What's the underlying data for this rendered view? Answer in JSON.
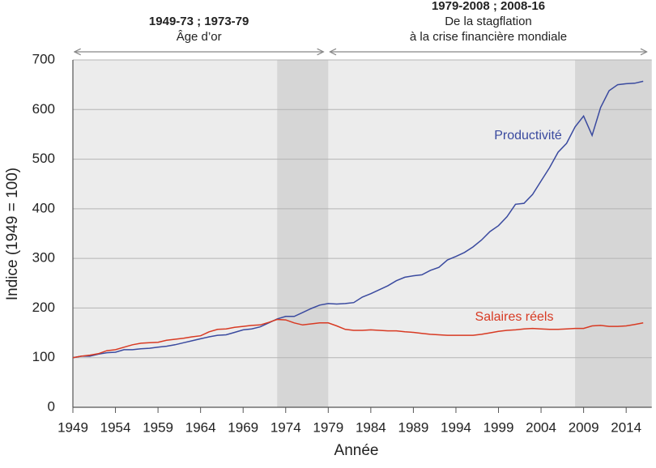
{
  "chart_data": {
    "type": "line",
    "x_label": "Année",
    "y_label": "Indice (1949 = 100)",
    "xlim": [
      1949,
      2017
    ],
    "ylim": [
      0,
      700
    ],
    "xticks": [
      1949,
      1954,
      1959,
      1964,
      1969,
      1974,
      1979,
      1984,
      1989,
      1994,
      1999,
      2004,
      2009,
      2014
    ],
    "yticks": [
      0,
      100,
      200,
      300,
      400,
      500,
      600,
      700
    ],
    "grid": true,
    "shaded_periods": [
      [
        1973,
        1979
      ],
      [
        2008,
        2017
      ]
    ],
    "annotations": [
      {
        "title": "1949-73 ; 1973-79",
        "lines": [
          "Âge d’or"
        ],
        "span": [
          1949,
          1979
        ]
      },
      {
        "title": "1979-2008 ; 2008-16",
        "lines": [
          "De la stagflation",
          "à la crise financière mondiale"
        ],
        "span": [
          1979,
          2017
        ]
      }
    ],
    "x": [
      1949,
      1950,
      1951,
      1952,
      1953,
      1954,
      1955,
      1956,
      1957,
      1958,
      1959,
      1960,
      1961,
      1962,
      1963,
      1964,
      1965,
      1966,
      1967,
      1968,
      1969,
      1970,
      1971,
      1972,
      1973,
      1974,
      1975,
      1976,
      1977,
      1978,
      1979,
      1980,
      1981,
      1982,
      1983,
      1984,
      1985,
      1986,
      1987,
      1988,
      1989,
      1990,
      1991,
      1992,
      1993,
      1994,
      1995,
      1996,
      1997,
      1998,
      1999,
      2000,
      2001,
      2002,
      2003,
      2004,
      2005,
      2006,
      2007,
      2008,
      2009,
      2010,
      2011,
      2012,
      2013,
      2014,
      2015,
      2016
    ],
    "series": [
      {
        "name": "Productivité",
        "color": "#3a4a9f",
        "values": [
          100,
          103,
          103,
          107,
          110,
          111,
          116,
          116,
          118,
          119,
          121,
          123,
          126,
          130,
          134,
          138,
          142,
          145,
          146,
          151,
          156,
          158,
          162,
          170,
          178,
          183,
          183,
          191,
          199,
          206,
          209,
          208,
          209,
          211,
          222,
          229,
          237,
          245,
          255,
          262,
          265,
          267,
          276,
          282,
          297,
          304,
          312,
          323,
          337,
          354,
          366,
          384,
          409,
          411,
          429,
          456,
          483,
          514,
          532,
          565,
          587,
          548,
          604,
          638,
          650,
          652,
          653,
          657
        ]
      },
      {
        "name": "Salaires réels",
        "color": "#d83a23",
        "values": [
          100,
          103,
          105,
          108,
          114,
          116,
          121,
          126,
          129,
          130,
          131,
          135,
          137,
          139,
          142,
          144,
          152,
          157,
          158,
          161,
          163,
          165,
          166,
          171,
          177,
          176,
          170,
          166,
          168,
          170,
          170,
          164,
          157,
          155,
          155,
          156,
          155,
          154,
          154,
          152,
          151,
          149,
          147,
          146,
          145,
          145,
          145,
          145,
          147,
          150,
          153,
          155,
          156,
          158,
          159,
          158,
          157,
          157,
          158,
          159,
          159,
          164,
          165,
          163,
          163,
          164,
          167,
          170
        ]
      }
    ]
  }
}
